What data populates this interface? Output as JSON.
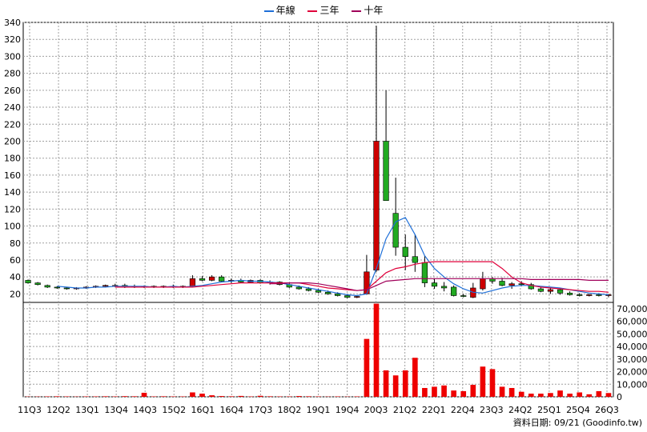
{
  "footer": {
    "text": "資料日期: 09/21  (Goodinfo.tw)"
  },
  "legend": [
    {
      "name": "年線",
      "color": "#1e6fd8"
    },
    {
      "name": "三年",
      "color": "#e0003a"
    },
    {
      "name": "十年",
      "color": "#a0005a"
    }
  ],
  "colors": {
    "up": "#cc0000",
    "down": "#22aa22",
    "volume": "#ee0000",
    "grid": "#a0a0a0"
  },
  "chart_data": [
    {
      "type": "candlestick",
      "ylim": [
        10,
        340
      ],
      "yticks": [
        20,
        40,
        60,
        80,
        100,
        120,
        140,
        160,
        180,
        200,
        220,
        240,
        260,
        280,
        300,
        320,
        340
      ],
      "xticks": [
        "11Q3",
        "12Q2",
        "13Q1",
        "13Q4",
        "14Q3",
        "15Q2",
        "16Q1",
        "16Q4",
        "17Q3",
        "18Q2",
        "19Q1",
        "19Q4",
        "20Q3",
        "21Q2",
        "22Q1",
        "22Q4",
        "23Q3",
        "24Q2",
        "25Q1",
        "25Q4",
        "26Q3"
      ],
      "ohlc": [
        [
          36,
          37,
          32,
          33
        ],
        [
          33,
          34,
          30,
          31
        ],
        [
          30,
          31,
          27,
          28
        ],
        [
          28,
          29,
          26,
          27
        ],
        [
          27,
          28,
          25,
          26
        ],
        [
          26,
          28,
          25,
          27
        ],
        [
          27,
          29,
          26,
          28
        ],
        [
          28,
          30,
          27,
          29
        ],
        [
          29,
          31,
          28,
          30
        ],
        [
          30,
          32,
          28,
          30
        ],
        [
          30,
          32,
          27,
          29
        ],
        [
          29,
          31,
          27,
          28
        ],
        [
          28,
          30,
          27,
          29
        ],
        [
          29,
          30,
          27,
          28
        ],
        [
          28,
          30,
          27,
          29
        ],
        [
          29,
          31,
          27,
          28
        ],
        [
          28,
          30,
          27,
          29
        ],
        [
          29,
          42,
          28,
          38
        ],
        [
          38,
          41,
          35,
          36
        ],
        [
          36,
          42,
          35,
          40
        ],
        [
          40,
          42,
          34,
          35
        ],
        [
          35,
          38,
          33,
          36
        ],
        [
          36,
          38,
          33,
          34
        ],
        [
          34,
          37,
          33,
          36
        ],
        [
          36,
          37,
          32,
          33
        ],
        [
          33,
          36,
          31,
          34
        ],
        [
          34,
          35,
          30,
          31
        ],
        [
          31,
          33,
          27,
          28
        ],
        [
          28,
          30,
          25,
          26
        ],
        [
          26,
          28,
          23,
          24
        ],
        [
          24,
          26,
          21,
          22
        ],
        [
          22,
          24,
          19,
          20
        ],
        [
          20,
          22,
          17,
          18
        ],
        [
          18,
          19,
          15,
          16
        ],
        [
          16,
          18,
          15,
          17
        ],
        [
          20,
          66,
          19,
          46
        ],
        [
          48,
          336,
          46,
          200
        ],
        [
          200,
          260,
          130,
          130
        ],
        [
          115,
          157,
          65,
          75
        ],
        [
          75,
          90,
          48,
          64
        ],
        [
          64,
          90,
          46,
          57
        ],
        [
          57,
          65,
          28,
          33
        ],
        [
          33,
          38,
          26,
          29
        ],
        [
          29,
          34,
          23,
          27
        ],
        [
          28,
          30,
          17,
          18
        ],
        [
          18,
          20,
          16,
          17
        ],
        [
          16,
          33,
          15,
          27
        ],
        [
          26,
          46,
          24,
          38
        ],
        [
          38,
          40,
          32,
          35
        ],
        [
          35,
          39,
          29,
          30
        ],
        [
          30,
          34,
          26,
          32
        ],
        [
          32,
          35,
          29,
          31
        ],
        [
          31,
          33,
          25,
          26
        ],
        [
          26,
          28,
          22,
          23
        ],
        [
          23,
          27,
          20,
          25
        ],
        [
          25,
          27,
          19,
          21
        ],
        [
          21,
          23,
          18,
          19
        ],
        [
          19,
          21,
          17,
          18
        ],
        [
          18,
          20,
          17,
          19
        ],
        [
          19,
          21,
          17,
          18
        ],
        [
          18,
          20,
          16,
          19
        ]
      ],
      "series": [
        {
          "name": "年線",
          "values": [
            null,
            null,
            null,
            29,
            28,
            27,
            27,
            28,
            28,
            29,
            29,
            29,
            29,
            28,
            28,
            29,
            28,
            29,
            30,
            32,
            34,
            35,
            36,
            35,
            35,
            34,
            33,
            31,
            29,
            27,
            25,
            23,
            21,
            19,
            18,
            20,
            50,
            85,
            105,
            110,
            90,
            65,
            50,
            40,
            32,
            26,
            22,
            21,
            24,
            27,
            29,
            30,
            30,
            29,
            28,
            27,
            25,
            23,
            21,
            20,
            19
          ]
        },
        {
          "name": "三年",
          "values": [
            null,
            null,
            null,
            null,
            null,
            null,
            null,
            null,
            null,
            28,
            28,
            28,
            28,
            28,
            28,
            28,
            28,
            28,
            29,
            30,
            31,
            32,
            33,
            33,
            33,
            33,
            33,
            33,
            33,
            31,
            29,
            27,
            26,
            25,
            24,
            25,
            35,
            45,
            50,
            52,
            55,
            57,
            58,
            58,
            58,
            58,
            58,
            58,
            58,
            50,
            40,
            33,
            30,
            28,
            27,
            26,
            25,
            24,
            23,
            23,
            22
          ]
        },
        {
          "name": "十年",
          "values": [
            null,
            null,
            null,
            null,
            null,
            null,
            null,
            null,
            null,
            null,
            null,
            null,
            null,
            null,
            null,
            null,
            null,
            null,
            null,
            null,
            null,
            null,
            null,
            null,
            null,
            32,
            32,
            33,
            33,
            33,
            32,
            30,
            28,
            26,
            24,
            25,
            30,
            35,
            36,
            37,
            38,
            38,
            38,
            38,
            38,
            38,
            38,
            38,
            38,
            38,
            38,
            38,
            37,
            37,
            37,
            37,
            37,
            37,
            36,
            36,
            36
          ]
        }
      ]
    },
    {
      "type": "bar",
      "title": "",
      "ylim": [
        0,
        75000
      ],
      "yticks": [
        0,
        10000,
        20000,
        30000,
        40000,
        50000,
        60000,
        70000
      ],
      "ytick_labels": [
        "0",
        "10,000",
        "20,000",
        "30,000",
        "40,000",
        "50,000",
        "60,000",
        "70,000"
      ],
      "values": [
        200,
        200,
        300,
        400,
        300,
        200,
        300,
        300,
        400,
        300,
        500,
        400,
        3200,
        300,
        400,
        300,
        300,
        3500,
        2500,
        1200,
        600,
        400,
        700,
        300,
        800,
        400,
        300,
        300,
        600,
        400,
        300,
        200,
        300,
        200,
        300,
        46000,
        74000,
        21000,
        17000,
        21000,
        31000,
        7000,
        8000,
        9000,
        5000,
        4500,
        9500,
        24000,
        22000,
        8000,
        7000,
        4000,
        2500,
        2500,
        3000,
        5000,
        2500,
        3500,
        2000,
        4500,
        3000
      ]
    }
  ]
}
